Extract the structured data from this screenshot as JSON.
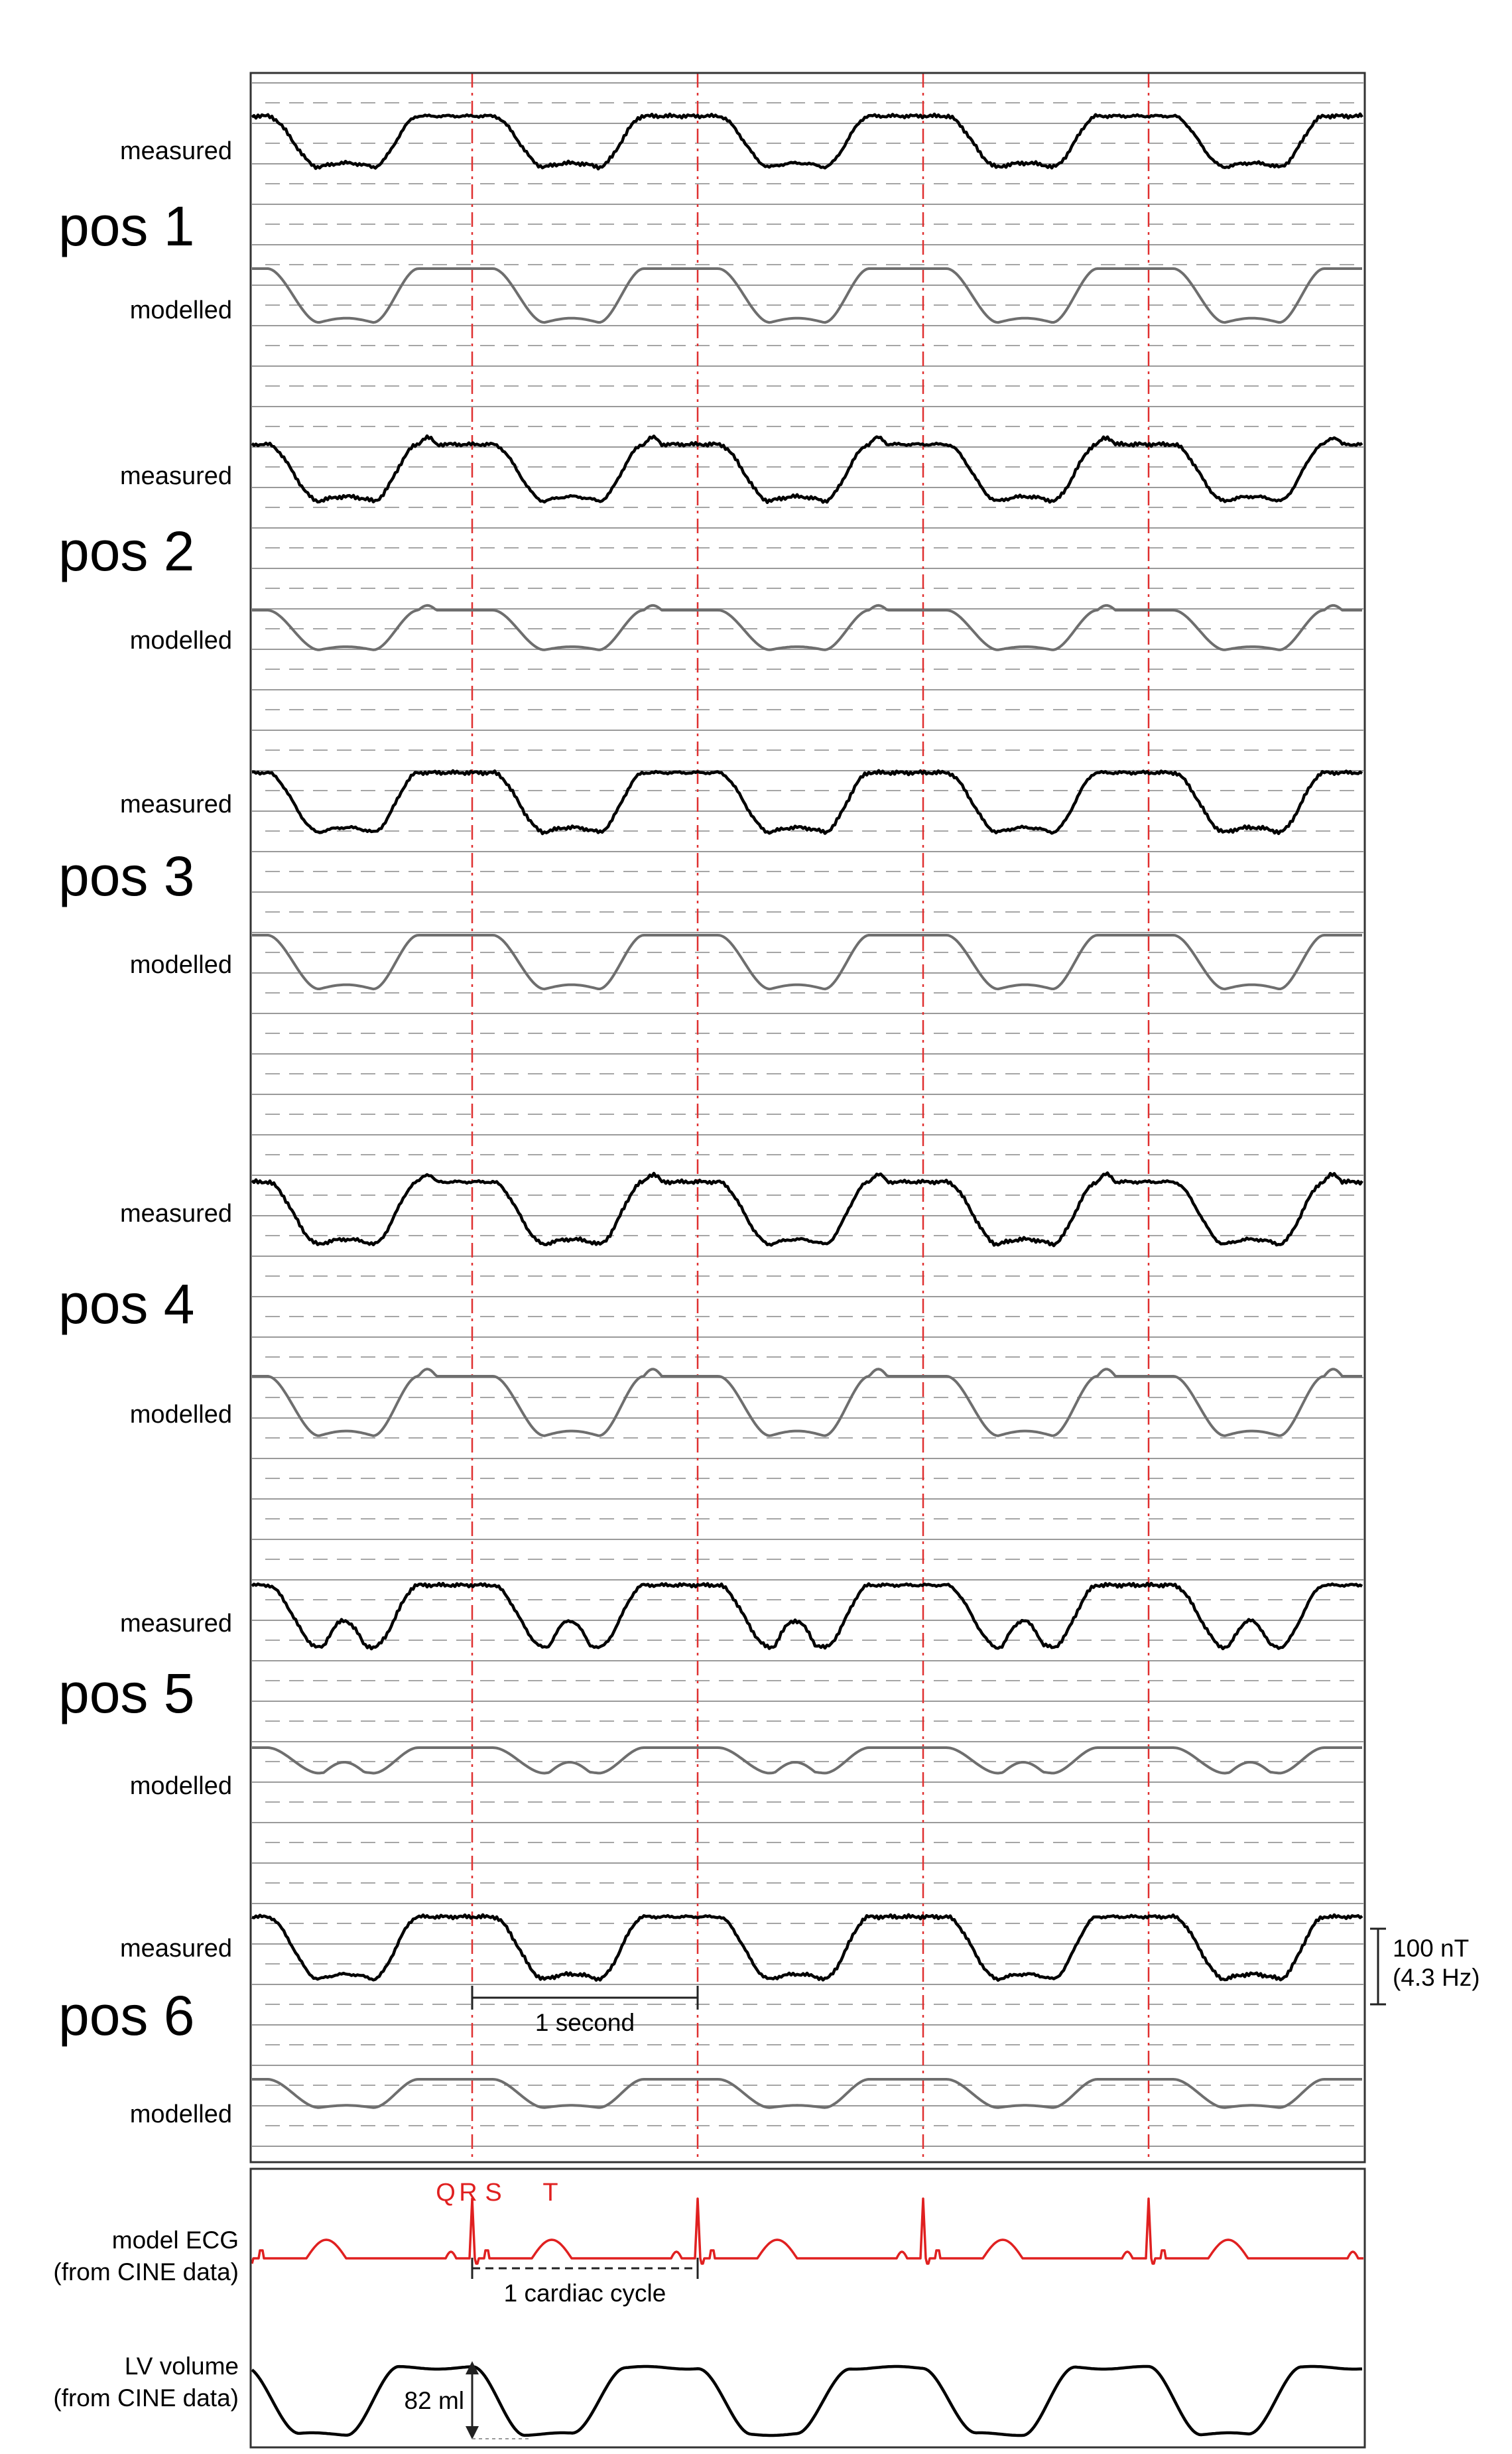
{
  "chart_data": {
    "type": "line",
    "panels": [
      {
        "pos_label": "pos 1",
        "measured_label": "measured",
        "modelled_label": "modelled"
      },
      {
        "pos_label": "pos 2",
        "measured_label": "measured",
        "modelled_label": "modelled"
      },
      {
        "pos_label": "pos 3",
        "measured_label": "measured",
        "modelled_label": "modelled"
      },
      {
        "pos_label": "pos 4",
        "measured_label": "measured",
        "modelled_label": "modelled"
      },
      {
        "pos_label": "pos 5",
        "measured_label": "measured",
        "modelled_label": "modelled"
      },
      {
        "pos_label": "pos 6",
        "measured_label": "measured",
        "modelled_label": "modelled"
      }
    ],
    "ecg": {
      "label_line1": "model ECG",
      "label_line2": "(from CINE data)",
      "wave_letters": [
        "Q",
        "R",
        "S",
        "T"
      ]
    },
    "lv_volume": {
      "label_line1": "LV volume",
      "label_line2": "(from CINE data)",
      "amplitude_label": "82 ml"
    },
    "scale_bar": {
      "time_label": "1 second",
      "amplitude_line1": "100 nT",
      "amplitude_line2": "(4.3 Hz)"
    },
    "cardiac_cycle_label": "1 cardiac cycle",
    "cardiac_cycles_shown": 5,
    "colors": {
      "measured": "#000000",
      "modelled": "#6e6e6e",
      "ecg": "#e02020",
      "r_peak_markers": "#e03030",
      "gridlines": "#9a9a9a"
    }
  }
}
